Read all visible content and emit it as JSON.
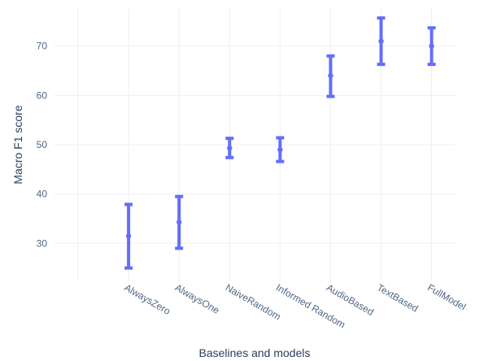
{
  "chart_data": {
    "type": "scatter",
    "xlabel": "Baselines and models",
    "ylabel": "Macro F1 score",
    "categories": [
      "AlwaysZero",
      "AlwaysOne",
      "NaiveRandom",
      "Informed Random",
      "AudioBased",
      "TextBased",
      "FullModel"
    ],
    "series": [
      {
        "values": [
          31.5,
          34.3,
          49.3,
          49.0,
          64.0,
          71.0,
          70.0
        ],
        "error_upper": [
          37.9,
          39.5,
          51.3,
          51.4,
          68.0,
          75.7,
          73.7
        ],
        "error_lower": [
          25.0,
          29.0,
          47.4,
          46.6,
          59.8,
          66.3,
          66.3
        ]
      }
    ],
    "yticks": [
      30,
      40,
      50,
      60,
      70
    ],
    "ylim": [
      22.3,
      77.7
    ],
    "grid": true,
    "color": "#636efa"
  }
}
